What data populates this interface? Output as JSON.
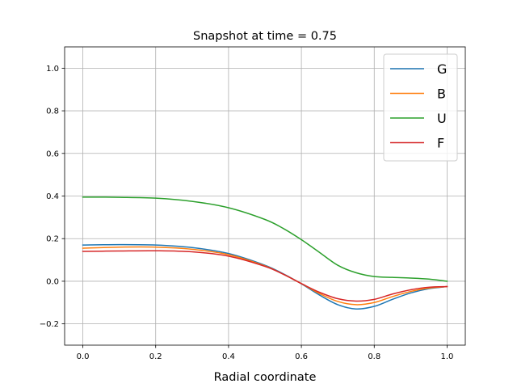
{
  "chart_data": {
    "type": "line",
    "title": "Snapshot at time = 0.75",
    "xlabel": "Radial coordinate",
    "ylabel": "",
    "xlim": [
      -0.05,
      1.05
    ],
    "ylim": [
      -0.3,
      1.1
    ],
    "xticks": [
      0.0,
      0.2,
      0.4,
      0.6,
      0.8,
      1.0
    ],
    "xtick_labels": [
      "0.0",
      "0.2",
      "0.4",
      "0.6",
      "0.8",
      "1.0"
    ],
    "yticks": [
      -0.2,
      0.0,
      0.2,
      0.4,
      0.6,
      0.8,
      1.0
    ],
    "ytick_labels": [
      "−0.2",
      "0.0",
      "0.2",
      "0.4",
      "0.6",
      "0.8",
      "1.0"
    ],
    "grid": true,
    "legend_position": "upper right",
    "x": [
      0.0,
      0.1,
      0.2,
      0.3,
      0.4,
      0.5,
      0.55,
      0.6,
      0.65,
      0.7,
      0.75,
      0.8,
      0.85,
      0.9,
      0.95,
      1.0
    ],
    "series": [
      {
        "name": "G",
        "color": "#1f77b4",
        "values": [
          0.17,
          0.172,
          0.17,
          0.158,
          0.13,
          0.075,
          0.035,
          -0.012,
          -0.065,
          -0.11,
          -0.13,
          -0.118,
          -0.085,
          -0.055,
          -0.035,
          -0.025
        ]
      },
      {
        "name": "B",
        "color": "#ff7f0e",
        "values": [
          0.155,
          0.16,
          0.16,
          0.15,
          0.125,
          0.072,
          0.033,
          -0.011,
          -0.058,
          -0.095,
          -0.11,
          -0.1,
          -0.072,
          -0.048,
          -0.032,
          -0.025
        ]
      },
      {
        "name": "U",
        "color": "#2ca02c",
        "values": [
          0.395,
          0.394,
          0.39,
          0.375,
          0.345,
          0.29,
          0.248,
          0.195,
          0.135,
          0.075,
          0.04,
          0.022,
          0.018,
          0.015,
          0.01,
          0.0
        ]
      },
      {
        "name": "F",
        "color": "#d62728",
        "values": [
          0.14,
          0.142,
          0.143,
          0.138,
          0.118,
          0.07,
          0.033,
          -0.011,
          -0.052,
          -0.082,
          -0.093,
          -0.085,
          -0.06,
          -0.04,
          -0.028,
          -0.025
        ]
      }
    ]
  }
}
